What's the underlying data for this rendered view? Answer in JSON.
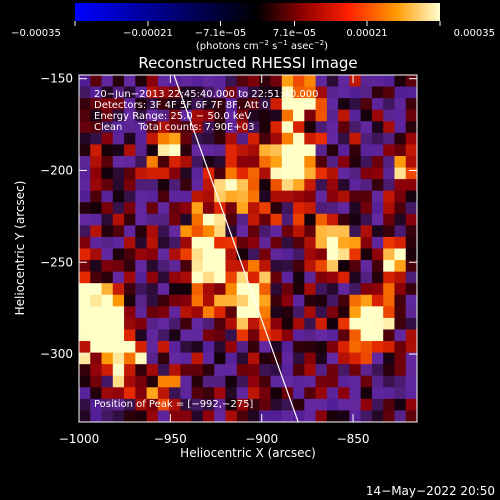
{
  "chart_data": {
    "type": "heatmap",
    "title": "Reconstructed RHESSI Image",
    "xlabel": "Heliocentric X (arcsec)",
    "ylabel": "Heliocentric Y (arcsec)",
    "xlim": [
      -1000,
      -815
    ],
    "ylim": [
      -337,
      -148
    ],
    "x_ticks": [
      -1000,
      -950,
      -900,
      -850
    ],
    "x_tick_labels": [
      "−1000",
      "−950",
      "−900",
      "−850"
    ],
    "y_ticks": [
      -300,
      -250,
      -200,
      -150
    ],
    "y_tick_labels": [
      "−300",
      "−250",
      "−200",
      "−150"
    ],
    "colorbar": {
      "range": [
        -0.00035,
        0.00035
      ],
      "ticks": [
        -0.00035,
        -0.00021,
        -7.1e-05,
        7.1e-05,
        0.00021,
        0.00035
      ],
      "tick_labels": [
        "−0.00035",
        "−0.00021",
        "−7.1e−05",
        "7.1e−05",
        "0.00021",
        "0.00035"
      ],
      "unit_prefix": "(photons cm",
      "unit_exp1": "−2",
      "unit_mid": " s",
      "unit_exp2": "−1",
      "unit_mid2": " asec",
      "unit_exp3": "−2",
      "unit_suffix": ")"
    },
    "info_lines": [
      "20−Jun−2013 22:45:40.000 to 22:51:40.000",
      "Detectors: 3F 4F 5F 6F 7F 8F, Att 0",
      "Energy Range: 25.0 − 50.0 keV",
      "Clean     Total counts: 7.90E+03"
    ],
    "peak_label": "Position of Peak = [−992,−275]",
    "peak_position": [
      -992,
      -275
    ],
    "limb_line": [
      [
        -948,
        -148
      ],
      [
        -880,
        -337
      ]
    ],
    "intensity_grid": {
      "rows": 30,
      "cols": 30,
      "note": "coarse estimate of normalized intensity, 0=dark,1=max",
      "hotspots": [
        {
          "x": -992,
          "y": -280,
          "w": 14,
          "h": 22,
          "a": 1.0
        },
        {
          "x": -975,
          "y": -300,
          "w": 10,
          "h": 18,
          "a": 0.7
        },
        {
          "x": -930,
          "y": -245,
          "w": 12,
          "h": 28,
          "a": 0.85
        },
        {
          "x": -915,
          "y": -210,
          "w": 10,
          "h": 12,
          "a": 0.8
        },
        {
          "x": -905,
          "y": -270,
          "w": 10,
          "h": 18,
          "a": 0.9
        },
        {
          "x": -885,
          "y": -195,
          "w": 14,
          "h": 22,
          "a": 0.9
        },
        {
          "x": -880,
          "y": -160,
          "w": 10,
          "h": 12,
          "a": 0.7
        },
        {
          "x": -860,
          "y": -240,
          "w": 12,
          "h": 14,
          "a": 0.75
        },
        {
          "x": -840,
          "y": -280,
          "w": 14,
          "h": 16,
          "a": 0.85
        },
        {
          "x": -825,
          "y": -250,
          "w": 8,
          "h": 12,
          "a": 0.7
        },
        {
          "x": -820,
          "y": -200,
          "w": 8,
          "h": 12,
          "a": 0.55
        },
        {
          "x": -950,
          "y": -190,
          "w": 12,
          "h": 10,
          "a": 0.5
        },
        {
          "x": -955,
          "y": -320,
          "w": 10,
          "h": 10,
          "a": 0.45
        }
      ]
    }
  },
  "timestamp": "14−May−2022 20:50"
}
